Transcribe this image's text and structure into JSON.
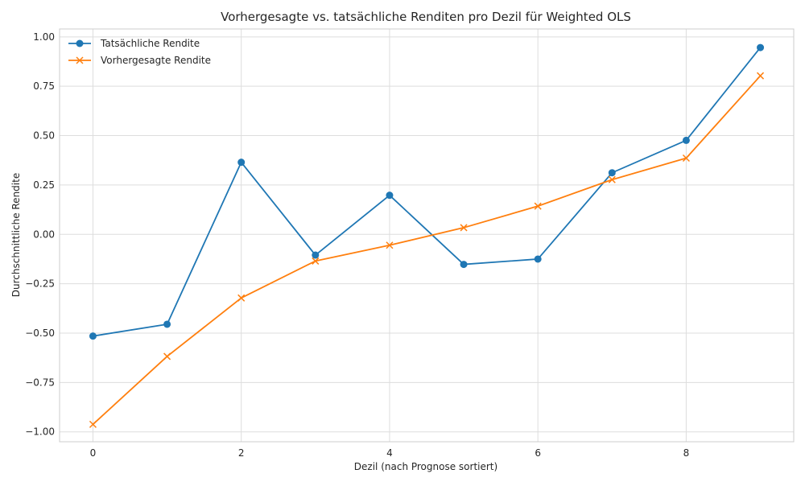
{
  "chart_data": {
    "type": "line",
    "title": "Vorhergesagte vs. tatsächliche Renditen pro Dezil für Weighted OLS",
    "xlabel": "Dezil (nach Prognose sortiert)",
    "ylabel": "Durchschnittliche Rendite",
    "x": [
      0,
      1,
      2,
      3,
      4,
      5,
      6,
      7,
      8,
      9
    ],
    "xlim": [
      -0.45,
      9.45
    ],
    "ylim": [
      -1.05,
      1.04
    ],
    "xticks": [
      0,
      2,
      4,
      6,
      8
    ],
    "xtick_labels": [
      "0",
      "2",
      "4",
      "6",
      "8"
    ],
    "yticks": [
      1.0,
      0.75,
      0.5,
      0.25,
      0.0,
      -0.25,
      -0.5,
      -0.75,
      -1.0
    ],
    "ytick_labels": [
      "1.00",
      "0.75",
      "0.50",
      "0.25",
      "0.00",
      "−0.25",
      "−0.50",
      "−0.75",
      "−1.00"
    ],
    "grid": true,
    "legend_position": "top-left",
    "series": [
      {
        "name": "Tatsächliche Rendite",
        "marker": "circle",
        "color": "#1f77b4",
        "values": [
          -0.515,
          -0.455,
          0.365,
          -0.105,
          0.198,
          -0.152,
          -0.125,
          0.312,
          0.476,
          0.946
        ]
      },
      {
        "name": "Vorhergesagte Rendite",
        "marker": "x",
        "color": "#ff7f0e",
        "values": [
          -0.962,
          -0.618,
          -0.322,
          -0.135,
          -0.055,
          0.034,
          0.143,
          0.277,
          0.386,
          0.803
        ]
      }
    ]
  }
}
